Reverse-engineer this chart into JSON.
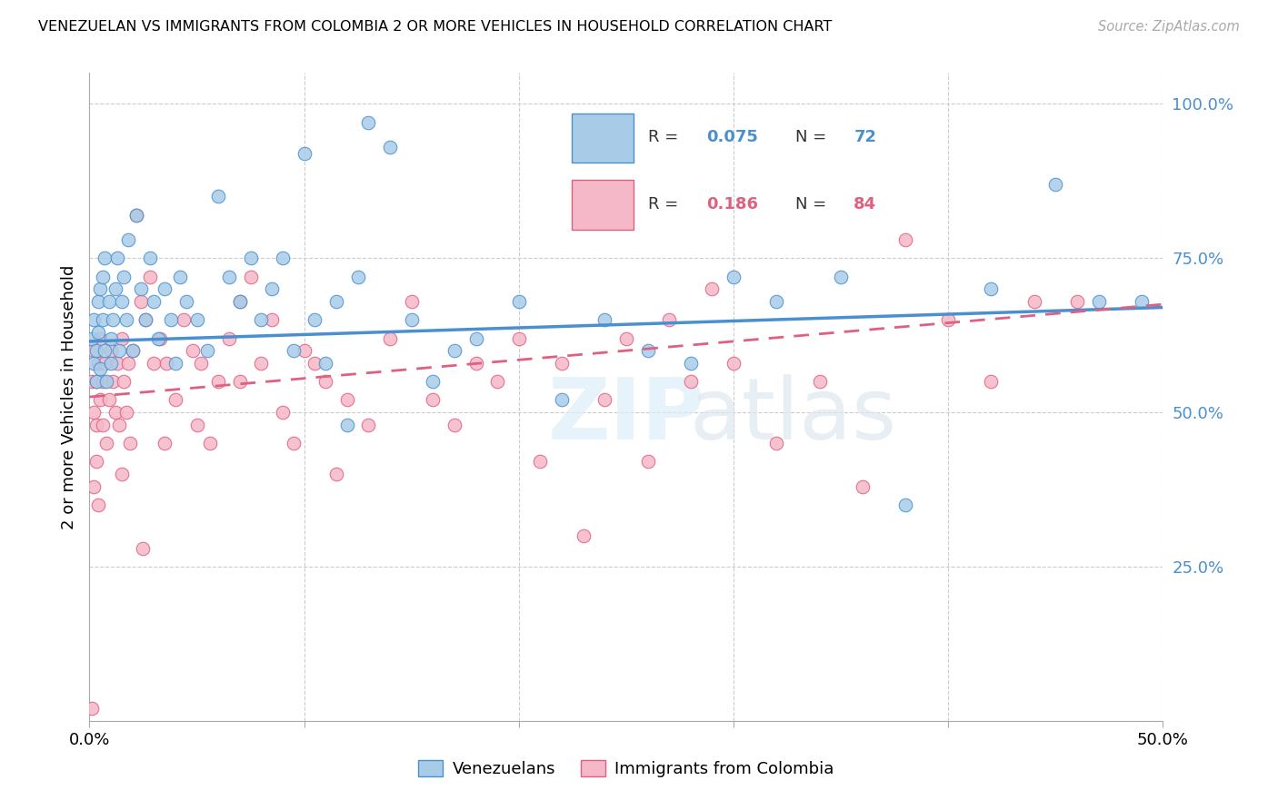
{
  "title": "VENEZUELAN VS IMMIGRANTS FROM COLOMBIA 2 OR MORE VEHICLES IN HOUSEHOLD CORRELATION CHART",
  "source": "Source: ZipAtlas.com",
  "ylabel": "2 or more Vehicles in Household",
  "xmin": 0.0,
  "xmax": 0.5,
  "ymin": 0.0,
  "ymax": 1.05,
  "xtick_vals": [
    0.0,
    0.1,
    0.2,
    0.3,
    0.4,
    0.5
  ],
  "xtick_labels": [
    "0.0%",
    "",
    "",
    "",
    "",
    "50.0%"
  ],
  "ytick_positions_right": [
    0.0,
    0.25,
    0.5,
    0.75,
    1.0
  ],
  "ytick_labels_right": [
    "",
    "25.0%",
    "50.0%",
    "75.0%",
    "100.0%"
  ],
  "R_venezuelan": 0.075,
  "N_venezuelan": 72,
  "R_colombia": 0.186,
  "N_colombia": 84,
  "color_venezuelan": "#a8cce8",
  "color_colombia": "#f5b8c8",
  "color_line_venezuelan": "#4a90d0",
  "color_line_colombia": "#e06080",
  "background_color": "#ffffff",
  "grid_color": "#cccccc",
  "venezuelan_x": [
    0.001,
    0.002,
    0.002,
    0.003,
    0.003,
    0.004,
    0.004,
    0.005,
    0.005,
    0.006,
    0.006,
    0.007,
    0.007,
    0.008,
    0.009,
    0.01,
    0.01,
    0.011,
    0.012,
    0.013,
    0.014,
    0.015,
    0.016,
    0.017,
    0.018,
    0.02,
    0.022,
    0.024,
    0.026,
    0.028,
    0.03,
    0.032,
    0.035,
    0.038,
    0.04,
    0.042,
    0.045,
    0.05,
    0.055,
    0.06,
    0.065,
    0.07,
    0.075,
    0.08,
    0.085,
    0.09,
    0.095,
    0.1,
    0.105,
    0.11,
    0.115,
    0.12,
    0.125,
    0.13,
    0.14,
    0.15,
    0.16,
    0.17,
    0.18,
    0.2,
    0.22,
    0.24,
    0.26,
    0.28,
    0.3,
    0.32,
    0.35,
    0.38,
    0.42,
    0.45,
    0.47,
    0.49
  ],
  "venezuelan_y": [
    0.62,
    0.58,
    0.65,
    0.6,
    0.55,
    0.68,
    0.63,
    0.57,
    0.7,
    0.65,
    0.72,
    0.6,
    0.75,
    0.55,
    0.68,
    0.62,
    0.58,
    0.65,
    0.7,
    0.75,
    0.6,
    0.68,
    0.72,
    0.65,
    0.78,
    0.6,
    0.82,
    0.7,
    0.65,
    0.75,
    0.68,
    0.62,
    0.7,
    0.65,
    0.58,
    0.72,
    0.68,
    0.65,
    0.6,
    0.85,
    0.72,
    0.68,
    0.75,
    0.65,
    0.7,
    0.75,
    0.6,
    0.92,
    0.65,
    0.58,
    0.68,
    0.48,
    0.72,
    0.97,
    0.93,
    0.65,
    0.55,
    0.6,
    0.62,
    0.68,
    0.52,
    0.65,
    0.6,
    0.58,
    0.72,
    0.68,
    0.72,
    0.35,
    0.7,
    0.87,
    0.68,
    0.68
  ],
  "colombia_x": [
    0.001,
    0.001,
    0.002,
    0.002,
    0.003,
    0.003,
    0.004,
    0.005,
    0.005,
    0.006,
    0.006,
    0.007,
    0.008,
    0.009,
    0.01,
    0.011,
    0.012,
    0.013,
    0.014,
    0.015,
    0.016,
    0.017,
    0.018,
    0.019,
    0.02,
    0.022,
    0.024,
    0.026,
    0.028,
    0.03,
    0.033,
    0.036,
    0.04,
    0.044,
    0.048,
    0.052,
    0.056,
    0.06,
    0.065,
    0.07,
    0.075,
    0.08,
    0.085,
    0.09,
    0.095,
    0.1,
    0.105,
    0.11,
    0.115,
    0.12,
    0.13,
    0.14,
    0.15,
    0.16,
    0.17,
    0.18,
    0.19,
    0.2,
    0.21,
    0.22,
    0.23,
    0.24,
    0.25,
    0.26,
    0.27,
    0.28,
    0.29,
    0.3,
    0.32,
    0.34,
    0.36,
    0.38,
    0.4,
    0.42,
    0.44,
    0.46,
    0.002,
    0.003,
    0.004,
    0.015,
    0.025,
    0.035,
    0.05,
    0.07
  ],
  "colombia_y": [
    0.02,
    0.55,
    0.5,
    0.6,
    0.48,
    0.55,
    0.58,
    0.52,
    0.62,
    0.48,
    0.55,
    0.58,
    0.45,
    0.52,
    0.6,
    0.55,
    0.5,
    0.58,
    0.48,
    0.62,
    0.55,
    0.5,
    0.58,
    0.45,
    0.6,
    0.82,
    0.68,
    0.65,
    0.72,
    0.58,
    0.62,
    0.58,
    0.52,
    0.65,
    0.6,
    0.58,
    0.45,
    0.55,
    0.62,
    0.68,
    0.72,
    0.58,
    0.65,
    0.5,
    0.45,
    0.6,
    0.58,
    0.55,
    0.4,
    0.52,
    0.48,
    0.62,
    0.68,
    0.52,
    0.48,
    0.58,
    0.55,
    0.62,
    0.42,
    0.58,
    0.3,
    0.52,
    0.62,
    0.42,
    0.65,
    0.55,
    0.7,
    0.58,
    0.45,
    0.55,
    0.38,
    0.78,
    0.65,
    0.55,
    0.68,
    0.68,
    0.38,
    0.42,
    0.35,
    0.4,
    0.28,
    0.45,
    0.48,
    0.55
  ]
}
